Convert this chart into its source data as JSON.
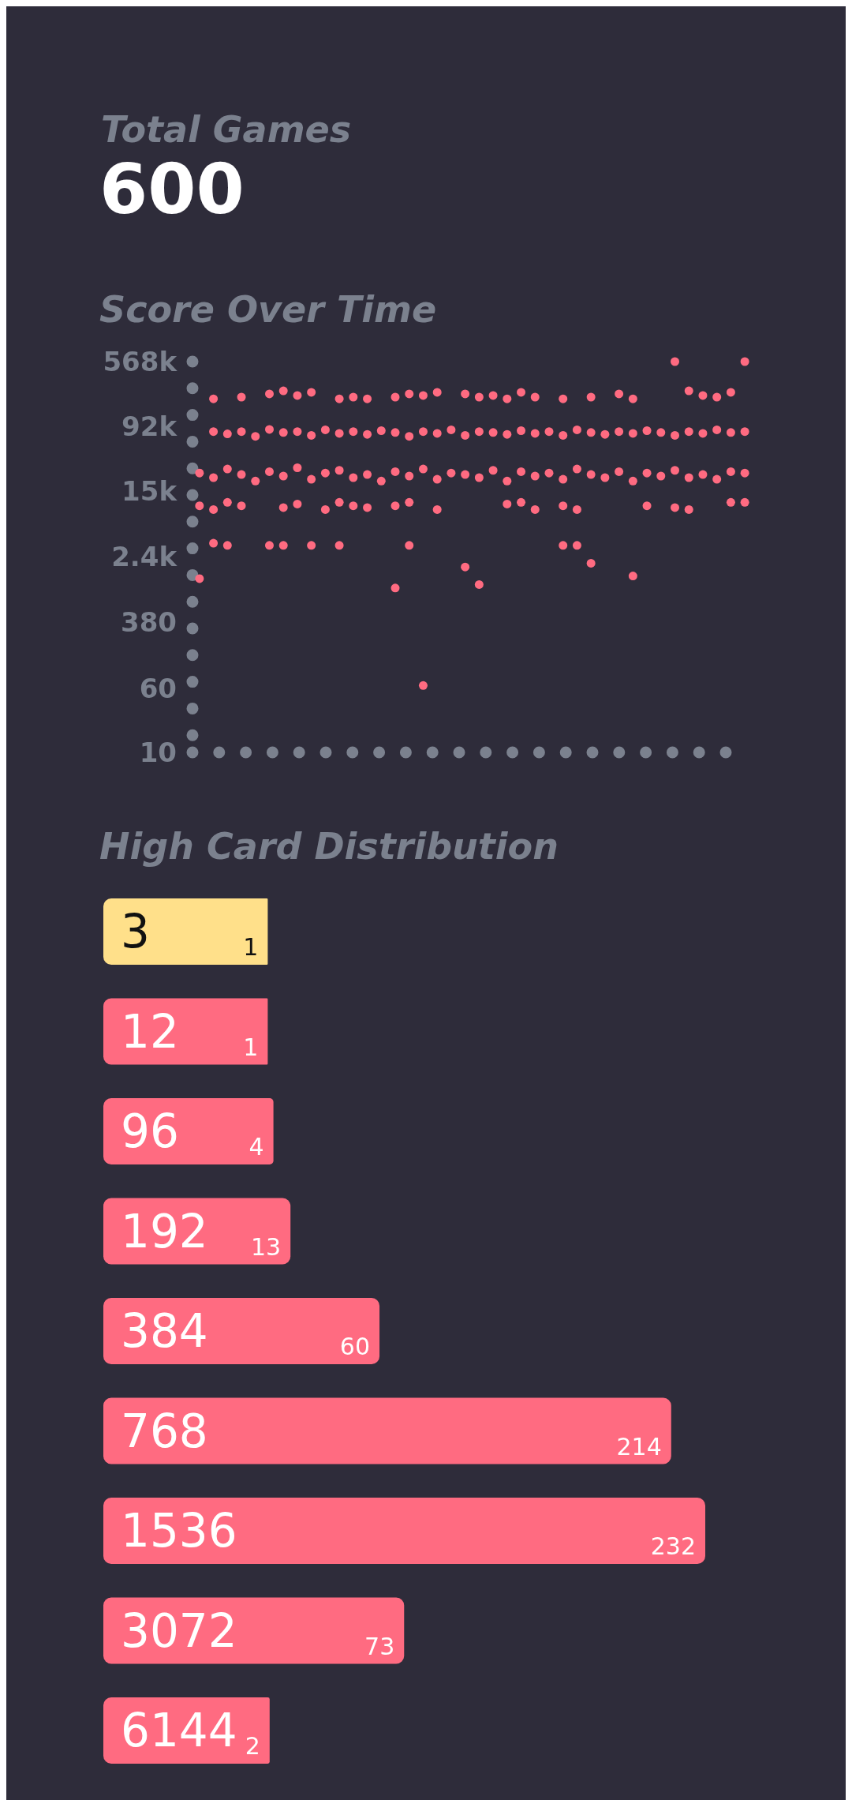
{
  "chart_data": [
    {
      "type": "other",
      "title": "Total Games",
      "annotations": [
        "600"
      ]
    },
    {
      "type": "scatter",
      "title": "Score Over Time",
      "log": "y",
      "marker": "circle",
      "grid": false,
      "tick_labels": "y",
      "ylim": [
        10,
        568000
      ],
      "yticks": [
        10,
        60,
        380,
        {
          "value": 2400,
          "label": "2.4k"
        },
        {
          "value": 15000,
          "label": "15k"
        },
        {
          "value": 92000,
          "label": "92k"
        },
        {
          "value": 568000,
          "label": "568k"
        }
      ],
      "categories": [
        null,
        null,
        null,
        null,
        null,
        null,
        null,
        null,
        null,
        null,
        null,
        null,
        null,
        null,
        null,
        null,
        null,
        null,
        null,
        null,
        null,
        null,
        null,
        null,
        null,
        null,
        null,
        null,
        null,
        null,
        null,
        null,
        null,
        null,
        null,
        null,
        null,
        null,
        null,
        null
      ],
      "series": [
        {
          "color": "#ff6b81",
          "values": [
            null,
            200000,
            null,
            210000,
            null,
            230000,
            250000,
            220000,
            240000,
            null,
            200000,
            210000,
            200000,
            null,
            210000,
            230000,
            220000,
            240000,
            null,
            230000,
            210000,
            220000,
            200000,
            240000,
            210000,
            null,
            200000,
            null,
            210000,
            null,
            230000,
            200000,
            null,
            null,
            568000,
            250000,
            220000,
            210000,
            240000,
            568000
          ]
        },
        {
          "color": "#ff6b81",
          "values": [
            null,
            80000,
            75000,
            80000,
            70000,
            85000,
            78000,
            80000,
            72000,
            84000,
            76000,
            80000,
            74000,
            82000,
            78000,
            70000,
            80000,
            76000,
            84000,
            72000,
            80000,
            78000,
            74000,
            82000,
            76000,
            80000,
            72000,
            84000,
            78000,
            74000,
            80000,
            76000,
            82000,
            78000,
            72000,
            80000,
            76000,
            84000,
            78000,
            80000
          ]
        },
        {
          "color": "#ff6b81",
          "values": [
            25000,
            22000,
            28000,
            24000,
            20000,
            26000,
            23000,
            29000,
            21000,
            25000,
            27000,
            22000,
            24000,
            20000,
            26000,
            23000,
            28000,
            21000,
            25000,
            24000,
            22000,
            27000,
            20000,
            26000,
            23000,
            25000,
            21000,
            28000,
            24000,
            22000,
            26000,
            20000,
            25000,
            23000,
            27000,
            22000,
            24000,
            21000,
            26000,
            25000
          ]
        },
        {
          "color": "#ff6b81",
          "values": [
            10000,
            9000,
            11000,
            10000,
            null,
            null,
            9500,
            10500,
            null,
            9000,
            11000,
            10000,
            9500,
            null,
            10000,
            11000,
            null,
            9000,
            null,
            null,
            null,
            null,
            10500,
            11000,
            9000,
            null,
            10000,
            9000,
            null,
            null,
            null,
            null,
            10000,
            null,
            9500,
            9000,
            null,
            null,
            11000,
            11000
          ]
        },
        {
          "color": "#ff6b81",
          "values": [
            1300,
            3500,
            3300,
            null,
            null,
            3300,
            3300,
            null,
            3300,
            null,
            3300,
            null,
            null,
            null,
            1000,
            3300,
            65,
            null,
            null,
            1800,
            1100,
            null,
            null,
            null,
            null,
            null,
            3300,
            3300,
            2000,
            null,
            null,
            1400,
            null,
            null,
            null,
            null,
            null,
            null,
            null,
            null
          ]
        }
      ]
    },
    {
      "type": "bar",
      "title": "High Card Distribution",
      "orientation": "horizontal",
      "data_labels": true,
      "categories": [
        "3",
        "12",
        "96",
        "192",
        "384",
        "768",
        "1536",
        "3072",
        "6144"
      ],
      "values": [
        1,
        1,
        4,
        13,
        60,
        214,
        232,
        73,
        2
      ],
      "colors": [
        "#ffe08a",
        "#ff6b81",
        "#ff6b81",
        "#ff6b81",
        "#ff6b81",
        "#ff6b81",
        "#ff6b81",
        "#ff6b81",
        "#ff6b81"
      ]
    }
  ]
}
